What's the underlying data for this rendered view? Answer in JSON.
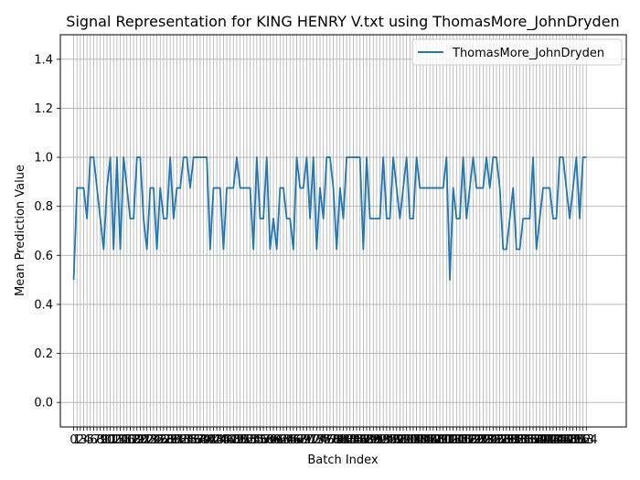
{
  "chart_data": {
    "type": "line",
    "title": "Signal Representation for KING HENRY V.txt using ThomasMore_JohnDryden",
    "xlabel": "Batch Index",
    "ylabel": "Mean Prediction Value",
    "ylim": [
      -0.1,
      1.5
    ],
    "xlim": [
      -4,
      166
    ],
    "yticks": [
      "0.0",
      "0.2",
      "0.4",
      "0.6",
      "0.8",
      "1.0",
      "1.2",
      "1.4"
    ],
    "ytick_values": [
      0.0,
      0.2,
      0.4,
      0.6,
      0.8,
      1.0,
      1.2,
      1.4
    ],
    "grid": true,
    "legend_position": "upper right",
    "colors": {
      "series": "#1f77b4",
      "grid": "#b0b0b0",
      "axis": "#000000"
    },
    "series": [
      {
        "name": "ThomasMore_JohnDryden",
        "values": [
          0.5,
          0.875,
          0.875,
          0.875,
          0.75,
          1.0,
          1.0,
          0.875,
          0.75,
          0.625,
          0.875,
          1.0,
          0.625,
          1.0,
          0.625,
          1.0,
          0.875,
          0.75,
          0.75,
          1.0,
          1.0,
          0.75,
          0.625,
          0.875,
          0.875,
          0.625,
          0.875,
          0.75,
          0.75,
          1.0,
          0.75,
          0.875,
          0.875,
          1.0,
          1.0,
          0.875,
          1.0,
          1.0,
          1.0,
          1.0,
          1.0,
          0.625,
          0.875,
          0.875,
          0.875,
          0.625,
          0.875,
          0.875,
          0.875,
          1.0,
          0.875,
          0.875,
          0.875,
          0.875,
          0.625,
          1.0,
          0.75,
          0.75,
          1.0,
          0.625,
          0.75,
          0.625,
          0.875,
          0.875,
          0.75,
          0.75,
          0.625,
          1.0,
          0.875,
          0.875,
          1.0,
          0.75,
          1.0,
          0.625,
          0.875,
          0.75,
          1.0,
          1.0,
          0.875,
          0.625,
          0.875,
          0.75,
          1.0,
          1.0,
          1.0,
          1.0,
          1.0,
          0.625,
          1.0,
          0.75,
          0.75,
          0.75,
          0.75,
          1.0,
          0.75,
          0.75,
          1.0,
          0.875,
          0.75,
          0.875,
          1.0,
          0.75,
          0.75,
          1.0,
          0.875,
          0.875,
          0.875,
          0.875,
          0.875,
          0.875,
          0.875,
          0.875,
          1.0,
          0.5,
          0.875,
          0.75,
          0.75,
          1.0,
          0.75,
          0.875,
          1.0,
          0.875,
          0.875,
          0.875,
          1.0,
          0.875,
          1.0,
          1.0,
          0.875,
          0.625,
          0.625,
          0.75,
          0.875,
          0.625,
          0.625,
          0.75,
          0.75,
          0.75,
          1.0,
          0.625,
          0.75,
          0.875,
          0.875,
          0.875,
          0.75,
          0.75,
          1.0,
          1.0,
          0.875,
          0.75,
          0.875,
          1.0,
          0.75,
          1.0,
          1.0
        ]
      }
    ]
  }
}
